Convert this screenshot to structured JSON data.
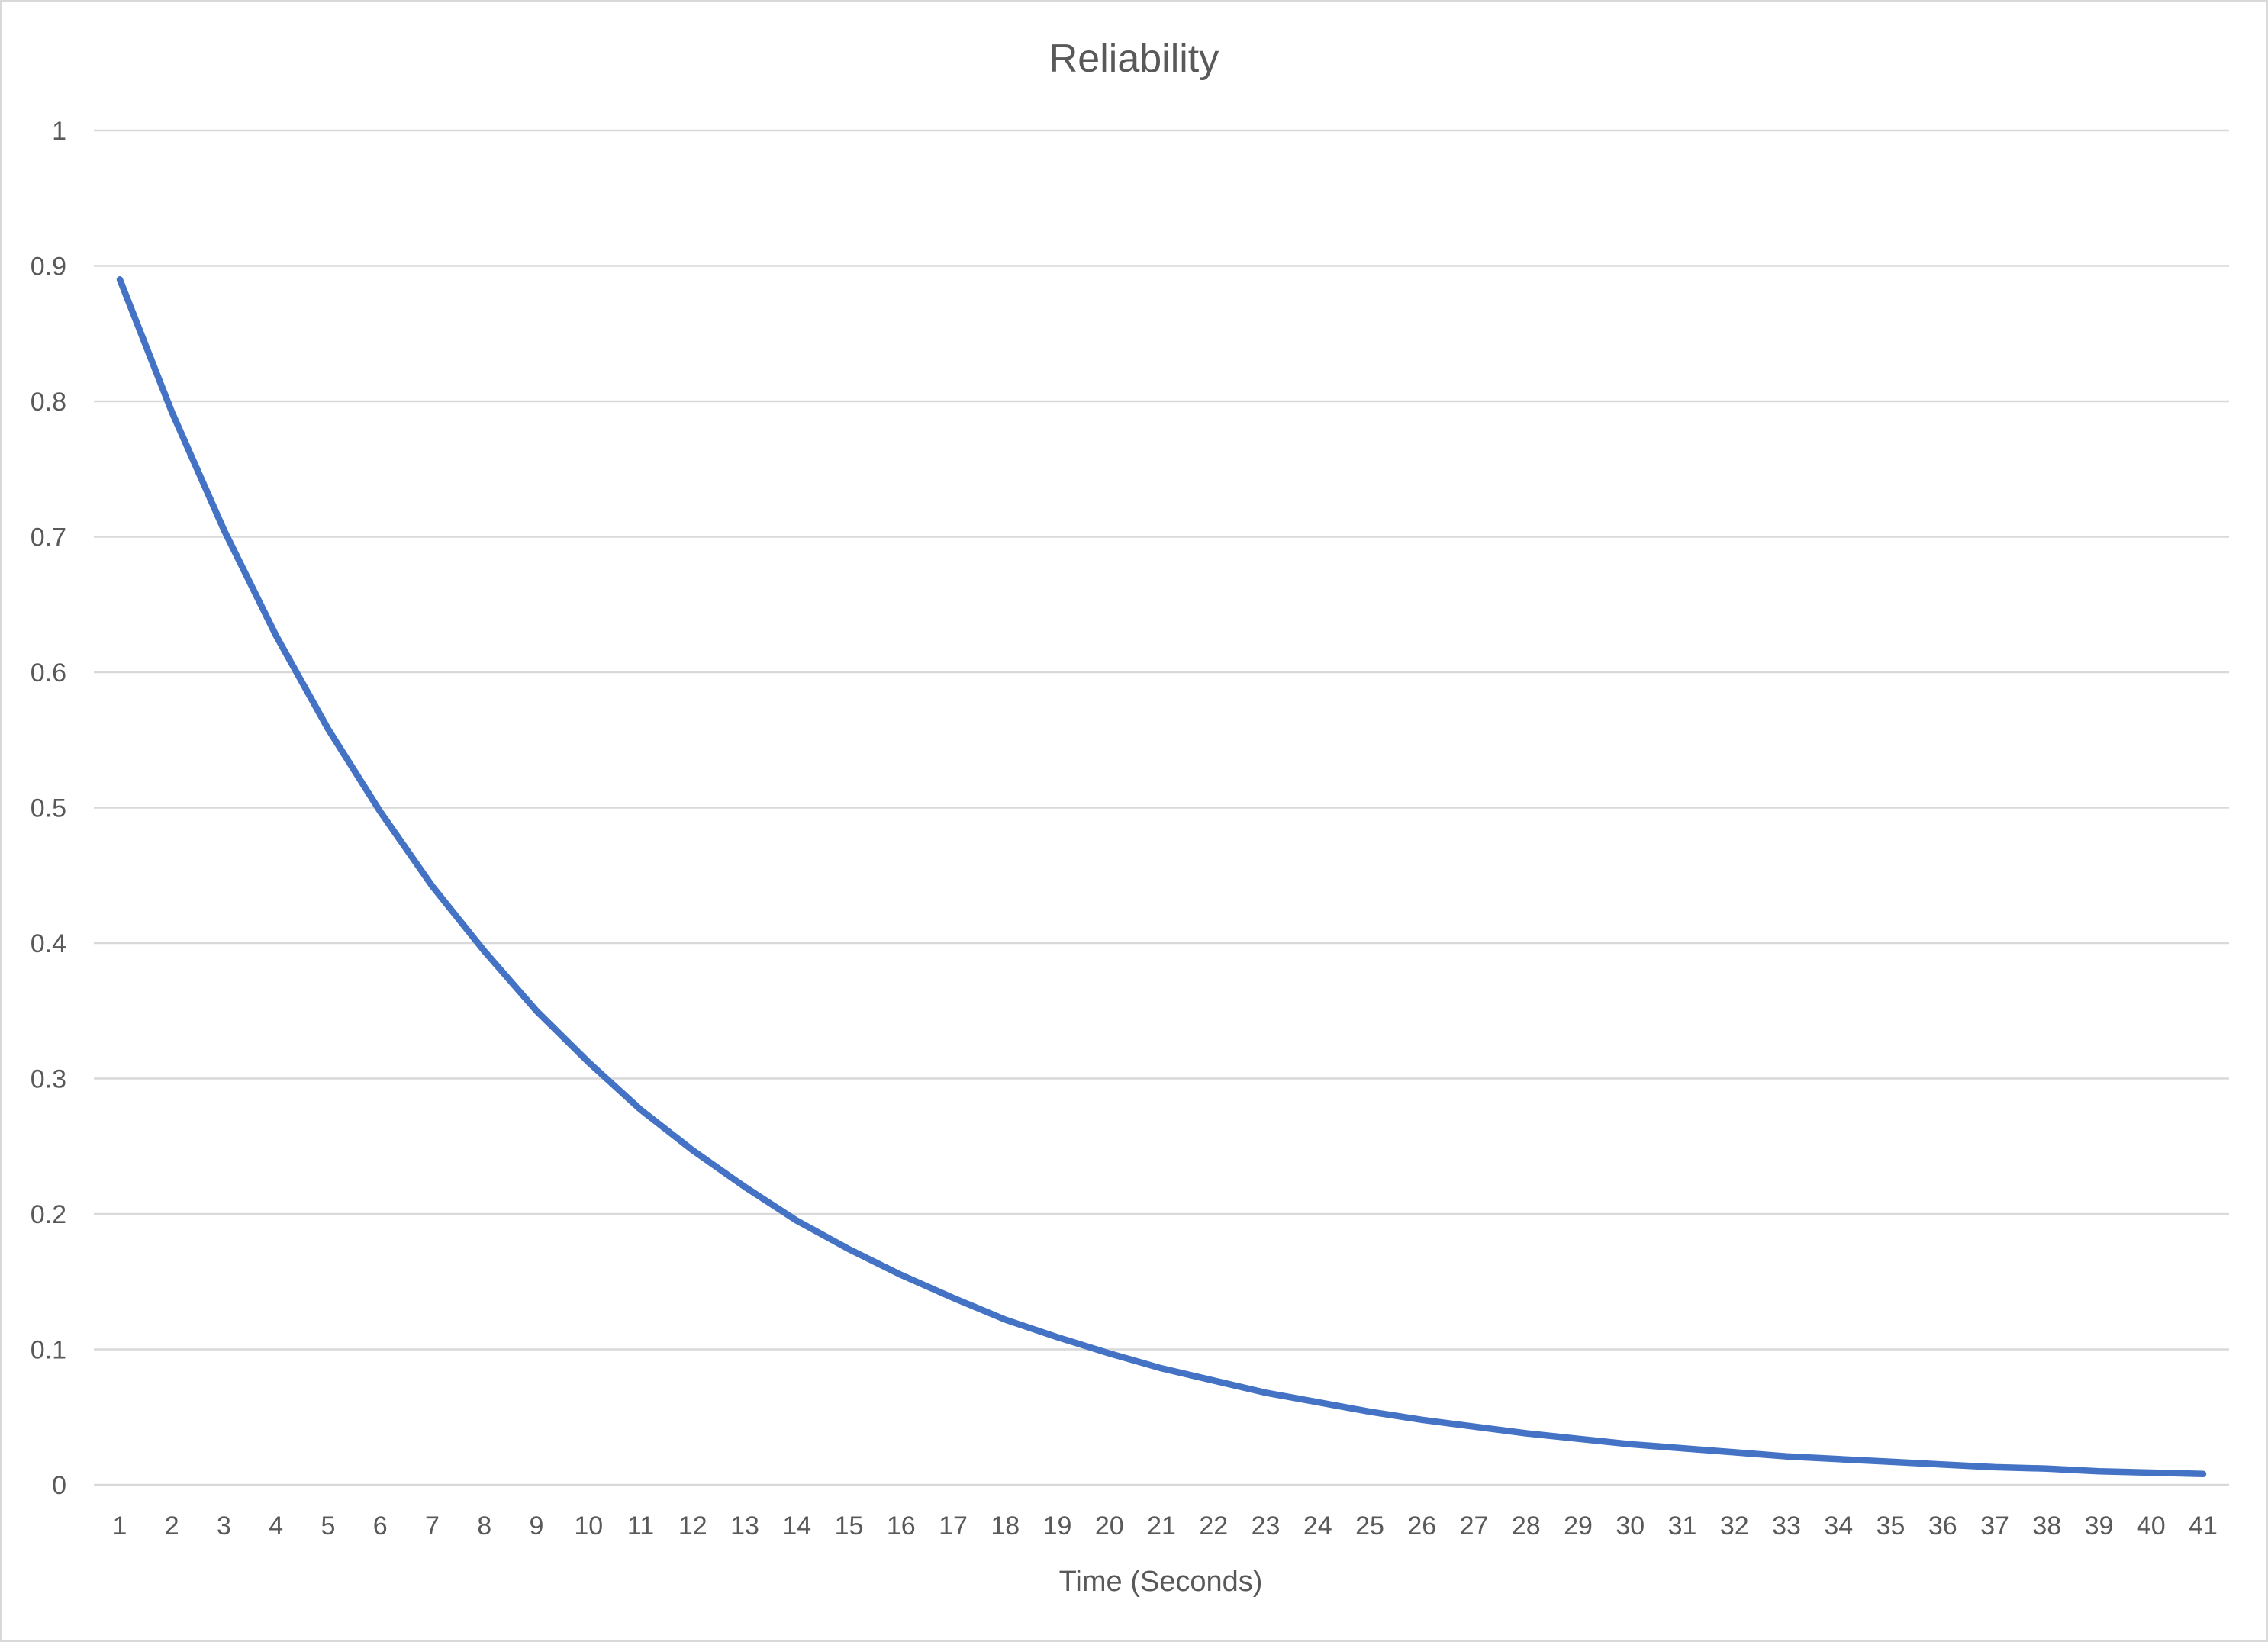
{
  "chart_data": {
    "type": "line",
    "title": "Reliability",
    "xlabel": "Time (Seconds)",
    "ylabel": "",
    "categories": [
      "1",
      "2",
      "3",
      "4",
      "5",
      "6",
      "7",
      "8",
      "9",
      "10",
      "11",
      "12",
      "13",
      "14",
      "15",
      "16",
      "17",
      "18",
      "19",
      "20",
      "21",
      "22",
      "23",
      "24",
      "25",
      "26",
      "27",
      "28",
      "29",
      "30",
      "31",
      "32",
      "33",
      "34",
      "35",
      "36",
      "37",
      "38",
      "39",
      "40",
      "41"
    ],
    "ylim": [
      0,
      1
    ],
    "yticks": [
      "0",
      "0.1",
      "0.2",
      "0.3",
      "0.4",
      "0.5",
      "0.6",
      "0.7",
      "0.8",
      "0.9",
      "1"
    ],
    "grid": true,
    "legend": "none",
    "series": [
      {
        "color": "#4472c4",
        "values": [
          0.89,
          0.792,
          0.705,
          0.627,
          0.558,
          0.497,
          0.442,
          0.394,
          0.35,
          0.312,
          0.277,
          0.247,
          0.22,
          0.195,
          0.174,
          0.155,
          0.138,
          0.122,
          0.109,
          0.097,
          0.086,
          0.077,
          0.068,
          0.061,
          0.054,
          0.048,
          0.043,
          0.038,
          0.034,
          0.03,
          0.027,
          0.024,
          0.021,
          0.019,
          0.017,
          0.015,
          0.013,
          0.012,
          0.01,
          0.009,
          0.008
        ]
      }
    ]
  }
}
